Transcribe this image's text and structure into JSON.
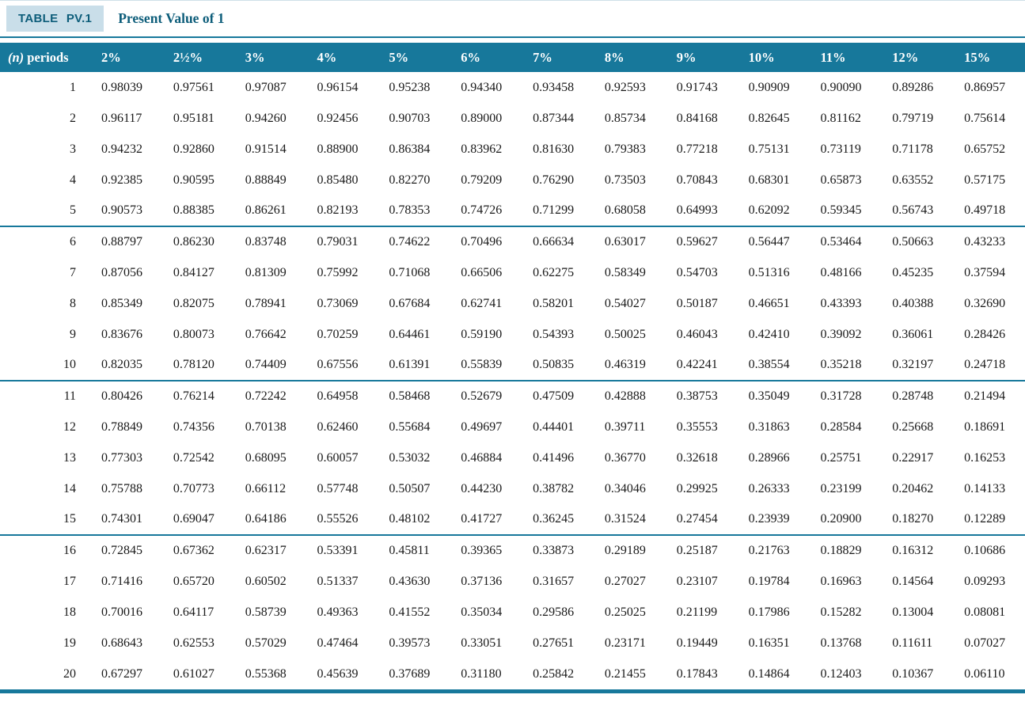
{
  "header": {
    "table_label": "TABLE PV.1",
    "title": "Present Value of 1",
    "periods_label_italic": "(n)",
    "periods_label_rest": " periods"
  },
  "columns": [
    "2%",
    "2½%",
    "3%",
    "4%",
    "5%",
    "6%",
    "7%",
    "8%",
    "9%",
    "10%",
    "11%",
    "12%",
    "15%"
  ],
  "rows": [
    {
      "n": 1,
      "values": [
        "0.98039",
        "0.97561",
        "0.97087",
        "0.96154",
        "0.95238",
        "0.94340",
        "0.93458",
        "0.92593",
        "0.91743",
        "0.90909",
        "0.90090",
        "0.89286",
        "0.86957"
      ]
    },
    {
      "n": 2,
      "values": [
        "0.96117",
        "0.95181",
        "0.94260",
        "0.92456",
        "0.90703",
        "0.89000",
        "0.87344",
        "0.85734",
        "0.84168",
        "0.82645",
        "0.81162",
        "0.79719",
        "0.75614"
      ]
    },
    {
      "n": 3,
      "values": [
        "0.94232",
        "0.92860",
        "0.91514",
        "0.88900",
        "0.86384",
        "0.83962",
        "0.81630",
        "0.79383",
        "0.77218",
        "0.75131",
        "0.73119",
        "0.71178",
        "0.65752"
      ]
    },
    {
      "n": 4,
      "values": [
        "0.92385",
        "0.90595",
        "0.88849",
        "0.85480",
        "0.82270",
        "0.79209",
        "0.76290",
        "0.73503",
        "0.70843",
        "0.68301",
        "0.65873",
        "0.63552",
        "0.57175"
      ]
    },
    {
      "n": 5,
      "values": [
        "0.90573",
        "0.88385",
        "0.86261",
        "0.82193",
        "0.78353",
        "0.74726",
        "0.71299",
        "0.68058",
        "0.64993",
        "0.62092",
        "0.59345",
        "0.56743",
        "0.49718"
      ]
    },
    {
      "n": 6,
      "values": [
        "0.88797",
        "0.86230",
        "0.83748",
        "0.79031",
        "0.74622",
        "0.70496",
        "0.66634",
        "0.63017",
        "0.59627",
        "0.56447",
        "0.53464",
        "0.50663",
        "0.43233"
      ]
    },
    {
      "n": 7,
      "values": [
        "0.87056",
        "0.84127",
        "0.81309",
        "0.75992",
        "0.71068",
        "0.66506",
        "0.62275",
        "0.58349",
        "0.54703",
        "0.51316",
        "0.48166",
        "0.45235",
        "0.37594"
      ]
    },
    {
      "n": 8,
      "values": [
        "0.85349",
        "0.82075",
        "0.78941",
        "0.73069",
        "0.67684",
        "0.62741",
        "0.58201",
        "0.54027",
        "0.50187",
        "0.46651",
        "0.43393",
        "0.40388",
        "0.32690"
      ]
    },
    {
      "n": 9,
      "values": [
        "0.83676",
        "0.80073",
        "0.76642",
        "0.70259",
        "0.64461",
        "0.59190",
        "0.54393",
        "0.50025",
        "0.46043",
        "0.42410",
        "0.39092",
        "0.36061",
        "0.28426"
      ]
    },
    {
      "n": 10,
      "values": [
        "0.82035",
        "0.78120",
        "0.74409",
        "0.67556",
        "0.61391",
        "0.55839",
        "0.50835",
        "0.46319",
        "0.42241",
        "0.38554",
        "0.35218",
        "0.32197",
        "0.24718"
      ]
    },
    {
      "n": 11,
      "values": [
        "0.80426",
        "0.76214",
        "0.72242",
        "0.64958",
        "0.58468",
        "0.52679",
        "0.47509",
        "0.42888",
        "0.38753",
        "0.35049",
        "0.31728",
        "0.28748",
        "0.21494"
      ]
    },
    {
      "n": 12,
      "values": [
        "0.78849",
        "0.74356",
        "0.70138",
        "0.62460",
        "0.55684",
        "0.49697",
        "0.44401",
        "0.39711",
        "0.35553",
        "0.31863",
        "0.28584",
        "0.25668",
        "0.18691"
      ]
    },
    {
      "n": 13,
      "values": [
        "0.77303",
        "0.72542",
        "0.68095",
        "0.60057",
        "0.53032",
        "0.46884",
        "0.41496",
        "0.36770",
        "0.32618",
        "0.28966",
        "0.25751",
        "0.22917",
        "0.16253"
      ]
    },
    {
      "n": 14,
      "values": [
        "0.75788",
        "0.70773",
        "0.66112",
        "0.57748",
        "0.50507",
        "0.44230",
        "0.38782",
        "0.34046",
        "0.29925",
        "0.26333",
        "0.23199",
        "0.20462",
        "0.14133"
      ]
    },
    {
      "n": 15,
      "values": [
        "0.74301",
        "0.69047",
        "0.64186",
        "0.55526",
        "0.48102",
        "0.41727",
        "0.36245",
        "0.31524",
        "0.27454",
        "0.23939",
        "0.20900",
        "0.18270",
        "0.12289"
      ]
    },
    {
      "n": 16,
      "values": [
        "0.72845",
        "0.67362",
        "0.62317",
        "0.53391",
        "0.45811",
        "0.39365",
        "0.33873",
        "0.29189",
        "0.25187",
        "0.21763",
        "0.18829",
        "0.16312",
        "0.10686"
      ]
    },
    {
      "n": 17,
      "values": [
        "0.71416",
        "0.65720",
        "0.60502",
        "0.51337",
        "0.43630",
        "0.37136",
        "0.31657",
        "0.27027",
        "0.23107",
        "0.19784",
        "0.16963",
        "0.14564",
        "0.09293"
      ]
    },
    {
      "n": 18,
      "values": [
        "0.70016",
        "0.64117",
        "0.58739",
        "0.49363",
        "0.41552",
        "0.35034",
        "0.29586",
        "0.25025",
        "0.21199",
        "0.17986",
        "0.15282",
        "0.13004",
        "0.08081"
      ]
    },
    {
      "n": 19,
      "values": [
        "0.68643",
        "0.62553",
        "0.57029",
        "0.47464",
        "0.39573",
        "0.33051",
        "0.27651",
        "0.23171",
        "0.19449",
        "0.16351",
        "0.13768",
        "0.11611",
        "0.07027"
      ]
    },
    {
      "n": 20,
      "values": [
        "0.67297",
        "0.61027",
        "0.55368",
        "0.45639",
        "0.37689",
        "0.31180",
        "0.25842",
        "0.21455",
        "0.17843",
        "0.14864",
        "0.12403",
        "0.10367",
        "0.06110"
      ]
    }
  ],
  "colors": {
    "rule_and_header": "#17789B",
    "tab_background": "#C9DEE9",
    "title_text": "#0D5D7A",
    "body_text": "#1A1A1A"
  },
  "layout": {
    "group_separator_after": [
      5,
      10,
      15
    ]
  }
}
